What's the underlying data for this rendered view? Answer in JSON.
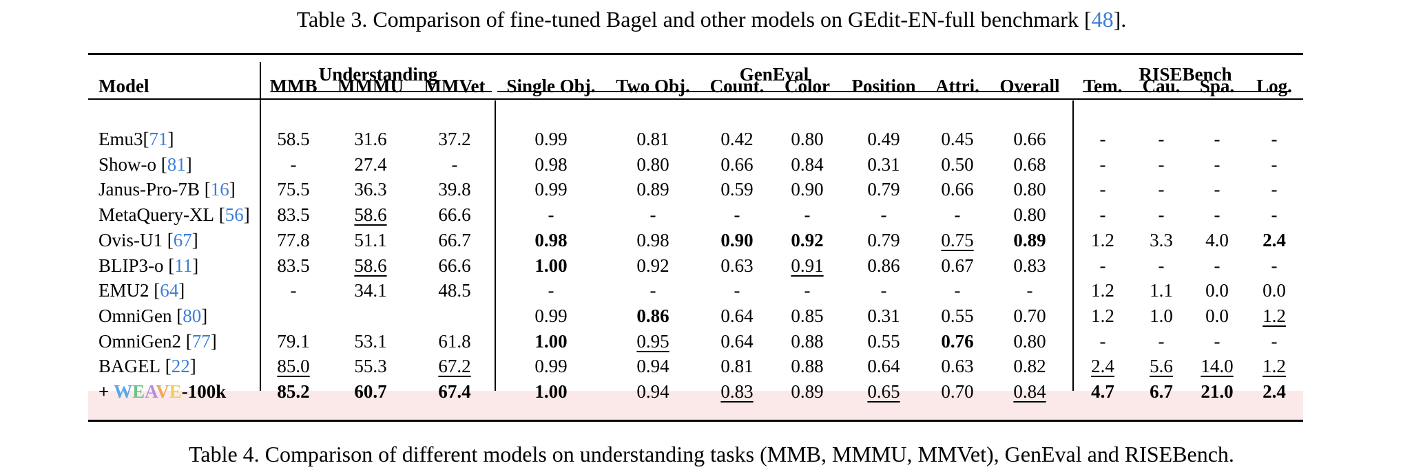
{
  "captions": {
    "top_prefix": "Table 3. Comparison of fine-tuned Bagel and other models on GEdit-EN-full benchmark [",
    "top_ref": "48",
    "top_suffix": "].",
    "bottom": "Table 4. Comparison of different models on understanding tasks (MMB, MMMU, MMVet), GenEval and RISEBench."
  },
  "table": {
    "groups": {
      "understanding": "Understanding",
      "geneval": "GenEval",
      "risebench": "RISEBench"
    },
    "headers": [
      "Model",
      "MMB",
      "MMMU",
      "MMVet",
      "Single Obj.",
      "Two Obj.",
      "Count.",
      "Color",
      "Position",
      "Attri.",
      "Overall",
      "Tem.",
      "Cau.",
      "Spa.",
      "Log."
    ],
    "rows": [
      {
        "name": "Emu3",
        "ref": "71",
        "sep": "",
        "cells": [
          "58.5",
          "31.6",
          "37.2",
          "0.99",
          "0.81",
          "0.42",
          "0.80",
          "0.49",
          "0.45",
          "0.66",
          "-",
          "-",
          "-",
          "-"
        ],
        "bold": [],
        "underline": []
      },
      {
        "name": "Show-o",
        "ref": "81",
        "sep": " ",
        "cells": [
          "-",
          "27.4",
          "-",
          "0.98",
          "0.80",
          "0.66",
          "0.84",
          "0.31",
          "0.50",
          "0.68",
          "-",
          "-",
          "-",
          "-"
        ],
        "bold": [],
        "underline": []
      },
      {
        "name": "Janus-Pro-7B",
        "ref": "16",
        "sep": " ",
        "cells": [
          "75.5",
          "36.3",
          "39.8",
          "0.99",
          "0.89",
          "0.59",
          "0.90",
          "0.79",
          "0.66",
          "0.80",
          "-",
          "-",
          "-",
          "-"
        ],
        "bold": [],
        "underline": []
      },
      {
        "name": "MetaQuery-XL",
        "ref": "56",
        "sep": " ",
        "cells": [
          "83.5",
          "58.6",
          "66.6",
          "-",
          "-",
          "-",
          "-",
          "-",
          "-",
          "0.80",
          "-",
          "-",
          "-",
          "-"
        ],
        "bold": [],
        "underline": [
          1
        ]
      },
      {
        "name": "Ovis-U1",
        "ref": "67",
        "sep": " ",
        "cells": [
          "77.8",
          "51.1",
          "66.7",
          "0.98",
          "0.98",
          "0.90",
          "0.92",
          "0.79",
          "0.75",
          "0.89",
          "1.2",
          "3.3",
          "4.0",
          "2.4"
        ],
        "bold": [
          3,
          5,
          6,
          9,
          13
        ],
        "underline": [
          8
        ]
      },
      {
        "name": "BLIP3-o",
        "ref": "11",
        "sep": " ",
        "cells": [
          "83.5",
          "58.6",
          "66.6",
          "1.00",
          "0.92",
          "0.63",
          "0.91",
          "0.86",
          "0.67",
          "0.83",
          "-",
          "-",
          "-",
          "-"
        ],
        "bold": [
          3
        ],
        "underline": [
          1,
          6
        ]
      },
      {
        "name": "EMU2",
        "ref": "64",
        "sep": " ",
        "cells": [
          "-",
          "34.1",
          "48.5",
          "-",
          "-",
          "-",
          "-",
          "-",
          "-",
          "-",
          "1.2",
          "1.1",
          "0.0",
          "0.0"
        ],
        "bold": [],
        "underline": []
      },
      {
        "name": "OmniGen",
        "ref": "80",
        "sep": " ",
        "cells": [
          "",
          "",
          "",
          "0.99",
          "0.86",
          "0.64",
          "0.85",
          "0.31",
          "0.55",
          "0.70",
          "1.2",
          "1.0",
          "0.0",
          "1.2"
        ],
        "bold": [
          4
        ],
        "underline": [
          13
        ]
      },
      {
        "name": "OmniGen2",
        "ref": "77",
        "sep": " ",
        "cells": [
          "79.1",
          "53.1",
          "61.8",
          "1.00",
          "0.95",
          "0.64",
          "0.88",
          "0.55",
          "0.76",
          "0.80",
          "-",
          "-",
          "-",
          "-"
        ],
        "bold": [
          3,
          8
        ],
        "underline": [
          4
        ]
      },
      {
        "name": "BAGEL",
        "ref": "22",
        "sep": " ",
        "cells": [
          "85.0",
          "55.3",
          "67.2",
          "0.99",
          "0.94",
          "0.81",
          "0.88",
          "0.64",
          "0.63",
          "0.82",
          "2.4",
          "5.6",
          "14.0",
          "1.2"
        ],
        "bold": [],
        "underline": [
          0,
          2,
          10,
          11,
          12,
          13
        ]
      }
    ],
    "final_row": {
      "prefix": "+ ",
      "weave_letters": [
        {
          "ch": "W",
          "color": "#5aa6e6"
        },
        {
          "ch": "E",
          "color": "#6cc38a"
        },
        {
          "ch": "A",
          "color": "#b58ee0"
        },
        {
          "ch": "V",
          "color": "#f2a65a"
        },
        {
          "ch": "E",
          "color": "#f2cf4a"
        }
      ],
      "suffix": "-100k",
      "cells": [
        "85.2",
        "60.7",
        "67.4",
        "1.00",
        "0.94",
        "0.83",
        "0.89",
        "0.65",
        "0.70",
        "0.84",
        "4.7",
        "6.7",
        "21.0",
        "2.4"
      ],
      "bold": [
        0,
        1,
        2,
        3,
        10,
        11,
        12,
        13
      ],
      "underline": [
        5,
        7,
        9
      ],
      "highlight_color": "#fbe9e9"
    }
  }
}
